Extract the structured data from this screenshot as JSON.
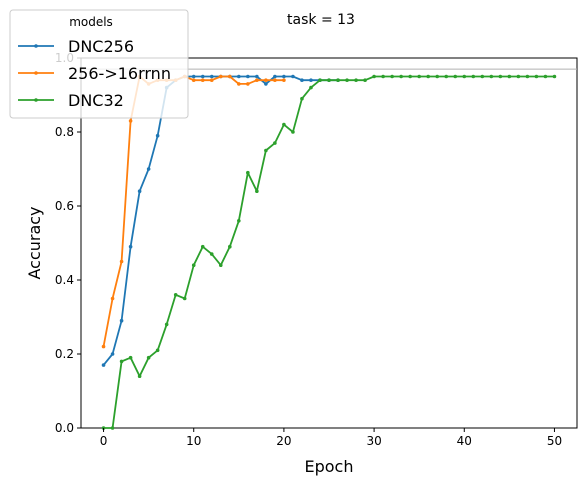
{
  "chart_data": {
    "type": "line",
    "title": "task = 13",
    "xlabel": "Epoch",
    "ylabel": "Accuracy",
    "xlim": [
      -2.5,
      52.5
    ],
    "ylim": [
      0.0,
      1.0
    ],
    "xticks": [
      0,
      10,
      20,
      30,
      40,
      50
    ],
    "yticks": [
      0.0,
      0.2,
      0.4,
      0.6,
      0.8,
      1.0
    ],
    "grid": false,
    "reference_line_y": 0.97,
    "legend": {
      "title": "models",
      "placement": "top-left"
    },
    "series": [
      {
        "name": "DNC256",
        "color": "#1f77b4",
        "x": [
          0,
          1,
          2,
          3,
          4,
          5,
          6,
          7,
          8,
          9,
          10,
          11,
          12,
          13,
          14,
          15,
          16,
          17,
          18,
          19,
          20,
          21,
          22,
          23,
          24,
          25,
          26
        ],
        "y": [
          0.17,
          0.2,
          0.29,
          0.49,
          0.64,
          0.7,
          0.79,
          0.92,
          0.94,
          0.95,
          0.95,
          0.95,
          0.95,
          0.95,
          0.95,
          0.95,
          0.95,
          0.95,
          0.93,
          0.95,
          0.95,
          0.95,
          0.94,
          0.94,
          0.94,
          0.94,
          0.94
        ]
      },
      {
        "name": "256->16rrnn",
        "color": "#ff7f0e",
        "x": [
          0,
          1,
          2,
          3,
          4,
          5,
          6,
          7,
          8,
          9,
          10,
          11,
          12,
          13,
          14,
          15,
          16,
          17,
          18,
          19,
          20
        ],
        "y": [
          0.22,
          0.35,
          0.45,
          0.83,
          0.95,
          0.93,
          0.94,
          0.94,
          0.94,
          0.95,
          0.94,
          0.94,
          0.94,
          0.95,
          0.95,
          0.93,
          0.93,
          0.94,
          0.94,
          0.94,
          0.94
        ]
      },
      {
        "name": "DNC32",
        "color": "#2ca02c",
        "x": [
          0,
          1,
          2,
          3,
          4,
          5,
          6,
          7,
          8,
          9,
          10,
          11,
          12,
          13,
          14,
          15,
          16,
          17,
          18,
          19,
          20,
          21,
          22,
          23,
          24,
          25,
          26,
          27,
          28,
          29,
          30,
          31,
          32,
          33,
          34,
          35,
          36,
          37,
          38,
          39,
          40,
          41,
          42,
          43,
          44,
          45,
          46,
          47,
          48,
          49,
          50
        ],
        "y": [
          0.0,
          0.0,
          0.18,
          0.19,
          0.14,
          0.19,
          0.21,
          0.28,
          0.36,
          0.35,
          0.44,
          0.49,
          0.47,
          0.44,
          0.49,
          0.56,
          0.69,
          0.64,
          0.75,
          0.77,
          0.82,
          0.8,
          0.89,
          0.92,
          0.94,
          0.94,
          0.94,
          0.94,
          0.94,
          0.94,
          0.95,
          0.95,
          0.95,
          0.95,
          0.95,
          0.95,
          0.95,
          0.95,
          0.95,
          0.95,
          0.95,
          0.95,
          0.95,
          0.95,
          0.95,
          0.95,
          0.95,
          0.95,
          0.95,
          0.95,
          0.95
        ]
      }
    ]
  }
}
